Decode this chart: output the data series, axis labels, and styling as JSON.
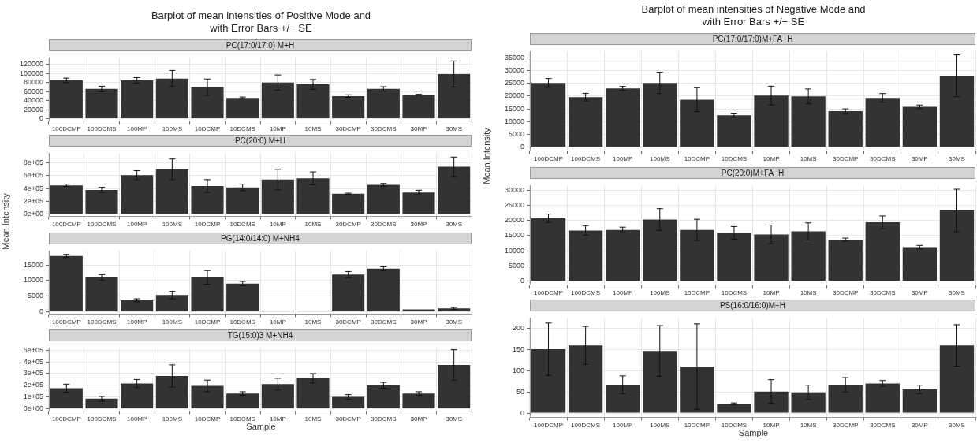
{
  "chart_data": [
    {
      "type": "bar",
      "title": "Barplot of mean intensities of Positive Mode and\nwith Error Bars +/− SE",
      "subtitle": "PC(17:0/17:0) M+H",
      "color": "#333333",
      "grid": true,
      "categories": [
        "100DCMP",
        "100DCMS",
        "100MP",
        "100MS",
        "10DCMP",
        "10DCMS",
        "10MP",
        "10MS",
        "30DCMP",
        "30DCMS",
        "30MP",
        "30MS"
      ],
      "values": [
        85000,
        66000,
        85000,
        89000,
        70000,
        46000,
        80000,
        76000,
        50000,
        66000,
        53000,
        99000
      ],
      "errors": [
        5000,
        6000,
        6000,
        18000,
        18000,
        2000,
        17000,
        11000,
        3000,
        5000,
        1000,
        29000
      ],
      "ylim": [
        -5000,
        135000
      ],
      "yticks": [
        0,
        20000,
        40000,
        60000,
        80000,
        100000,
        120000
      ]
    },
    {
      "type": "bar",
      "subtitle": "PC(20:0) M+H",
      "color": "#333333",
      "grid": true,
      "categories": [
        "100DCMP",
        "100DCMS",
        "100MP",
        "100MS",
        "10DCMP",
        "10DCMS",
        "10MP",
        "10MS",
        "30DCMP",
        "30DCMS",
        "30MP",
        "30MS"
      ],
      "values": [
        450000,
        380000,
        610000,
        700000,
        440000,
        420000,
        540000,
        560000,
        320000,
        460000,
        340000,
        740000
      ],
      "errors": [
        20000,
        40000,
        70000,
        160000,
        100000,
        50000,
        160000,
        100000,
        10000,
        20000,
        35000,
        150000
      ],
      "ylim": [
        -30000,
        950000
      ],
      "yticks": [
        {
          "value": 0,
          "label": "0e+00"
        },
        {
          "value": 200000,
          "label": "2e+05"
        },
        {
          "value": 400000,
          "label": "4e+05"
        },
        {
          "value": 600000,
          "label": "6e+05"
        },
        {
          "value": 800000,
          "label": "8e+05"
        }
      ]
    },
    {
      "type": "bar",
      "subtitle": "PG(14:0/14:0) M+NH4",
      "ylabel": "Mean Intensity",
      "color": "#333333",
      "grid": true,
      "categories": [
        "100DCMP",
        "100DCMS",
        "100MP",
        "100MS",
        "10DCMP",
        "10DCMS",
        "10MP",
        "10MS",
        "30DCMP",
        "30DCMS",
        "30MP",
        "30MS"
      ],
      "values": [
        17900,
        11000,
        3600,
        5300,
        11000,
        9000,
        300,
        300,
        11900,
        13800,
        700,
        1000
      ],
      "errors": [
        500,
        900,
        500,
        1200,
        2200,
        700,
        null,
        null,
        1000,
        600,
        null,
        300
      ],
      "ylim": [
        -800,
        19500
      ],
      "yticks": [
        0,
        5000,
        10000,
        15000
      ]
    },
    {
      "type": "bar",
      "subtitle": "TG(15:0)3 M+NH4",
      "xlabel": "Sample",
      "color": "#333333",
      "grid": true,
      "categories": [
        "100DCMP",
        "100DCMS",
        "100MP",
        "100MS",
        "10DCMP",
        "10DCMS",
        "10MP",
        "10MS",
        "30DCMP",
        "30DCMS",
        "30MP",
        "30MS"
      ],
      "values": [
        175000,
        85000,
        215000,
        280000,
        195000,
        130000,
        210000,
        260000,
        100000,
        200000,
        130000,
        375000
      ],
      "errors": [
        35000,
        20000,
        35000,
        95000,
        50000,
        15000,
        50000,
        40000,
        20000,
        25000,
        15000,
        130000
      ],
      "ylim": [
        -20000,
        520000
      ],
      "yticks": [
        {
          "value": 0,
          "label": "0e+00"
        },
        {
          "value": 100000,
          "label": "1e+05"
        },
        {
          "value": 200000,
          "label": "2e+05"
        },
        {
          "value": 300000,
          "label": "3e+05"
        },
        {
          "value": 400000,
          "label": "4e+05"
        },
        {
          "value": 500000,
          "label": "5e+05"
        }
      ]
    },
    {
      "type": "bar",
      "title": "Barplot of mean intensities of Negative Mode and\nwith Error Bars +/− SE",
      "subtitle": "PC(17:0/17:0)M+FA−H",
      "color": "#333333",
      "grid": true,
      "categories": [
        "100DCMP",
        "100DCMS",
        "100MP",
        "100MS",
        "10DCMP",
        "10DCMS",
        "10MP",
        "10MS",
        "30DCMP",
        "30DCMS",
        "30MP",
        "30MS"
      ],
      "values": [
        25200,
        19600,
        23000,
        25200,
        18600,
        12500,
        20200,
        19900,
        14100,
        19300,
        15800,
        28000
      ],
      "errors": [
        1700,
        1500,
        800,
        4200,
        4700,
        800,
        3700,
        2900,
        900,
        1700,
        700,
        8200
      ],
      "ylim": [
        -1500,
        37500
      ],
      "yticks": [
        0,
        5000,
        10000,
        15000,
        20000,
        25000,
        30000,
        35000
      ]
    },
    {
      "type": "bar",
      "subtitle": "PC(20:0)M+FA−H",
      "ylabel": "Mean Intensity",
      "color": "#333333",
      "grid": true,
      "categories": [
        "100DCMP",
        "100DCMS",
        "100MP",
        "100MS",
        "10DCMP",
        "10DCMS",
        "10MP",
        "10MS",
        "30DCMP",
        "30DCMS",
        "30MP",
        "30MS"
      ],
      "values": [
        20700,
        16700,
        16900,
        20300,
        16900,
        15900,
        15400,
        16400,
        13700,
        19400,
        11200,
        23300
      ],
      "errors": [
        1400,
        1600,
        900,
        3600,
        3500,
        2100,
        3100,
        2800,
        500,
        2100,
        600,
        7000
      ],
      "ylim": [
        -1200,
        31500
      ],
      "yticks": [
        0,
        5000,
        10000,
        15000,
        20000,
        25000,
        30000
      ]
    },
    {
      "type": "bar",
      "subtitle": "PS(16:0/16:0)M−H",
      "xlabel": "Sample",
      "color": "#333333",
      "grid": true,
      "categories": [
        "100DCMP",
        "100DCMS",
        "100MP",
        "100MS",
        "10DCMP",
        "10DCMS",
        "10MP",
        "10MS",
        "30DCMP",
        "30DCMS",
        "30MP",
        "30MS"
      ],
      "values": [
        151,
        160,
        67,
        147,
        110,
        22,
        51,
        49,
        67,
        70,
        56,
        160
      ],
      "errors": [
        62,
        45,
        21,
        60,
        101,
        2,
        28,
        17,
        17,
        7,
        10,
        49
      ],
      "ylim": [
        -10,
        225
      ],
      "yticks": [
        0,
        50,
        100,
        150,
        200
      ]
    }
  ]
}
